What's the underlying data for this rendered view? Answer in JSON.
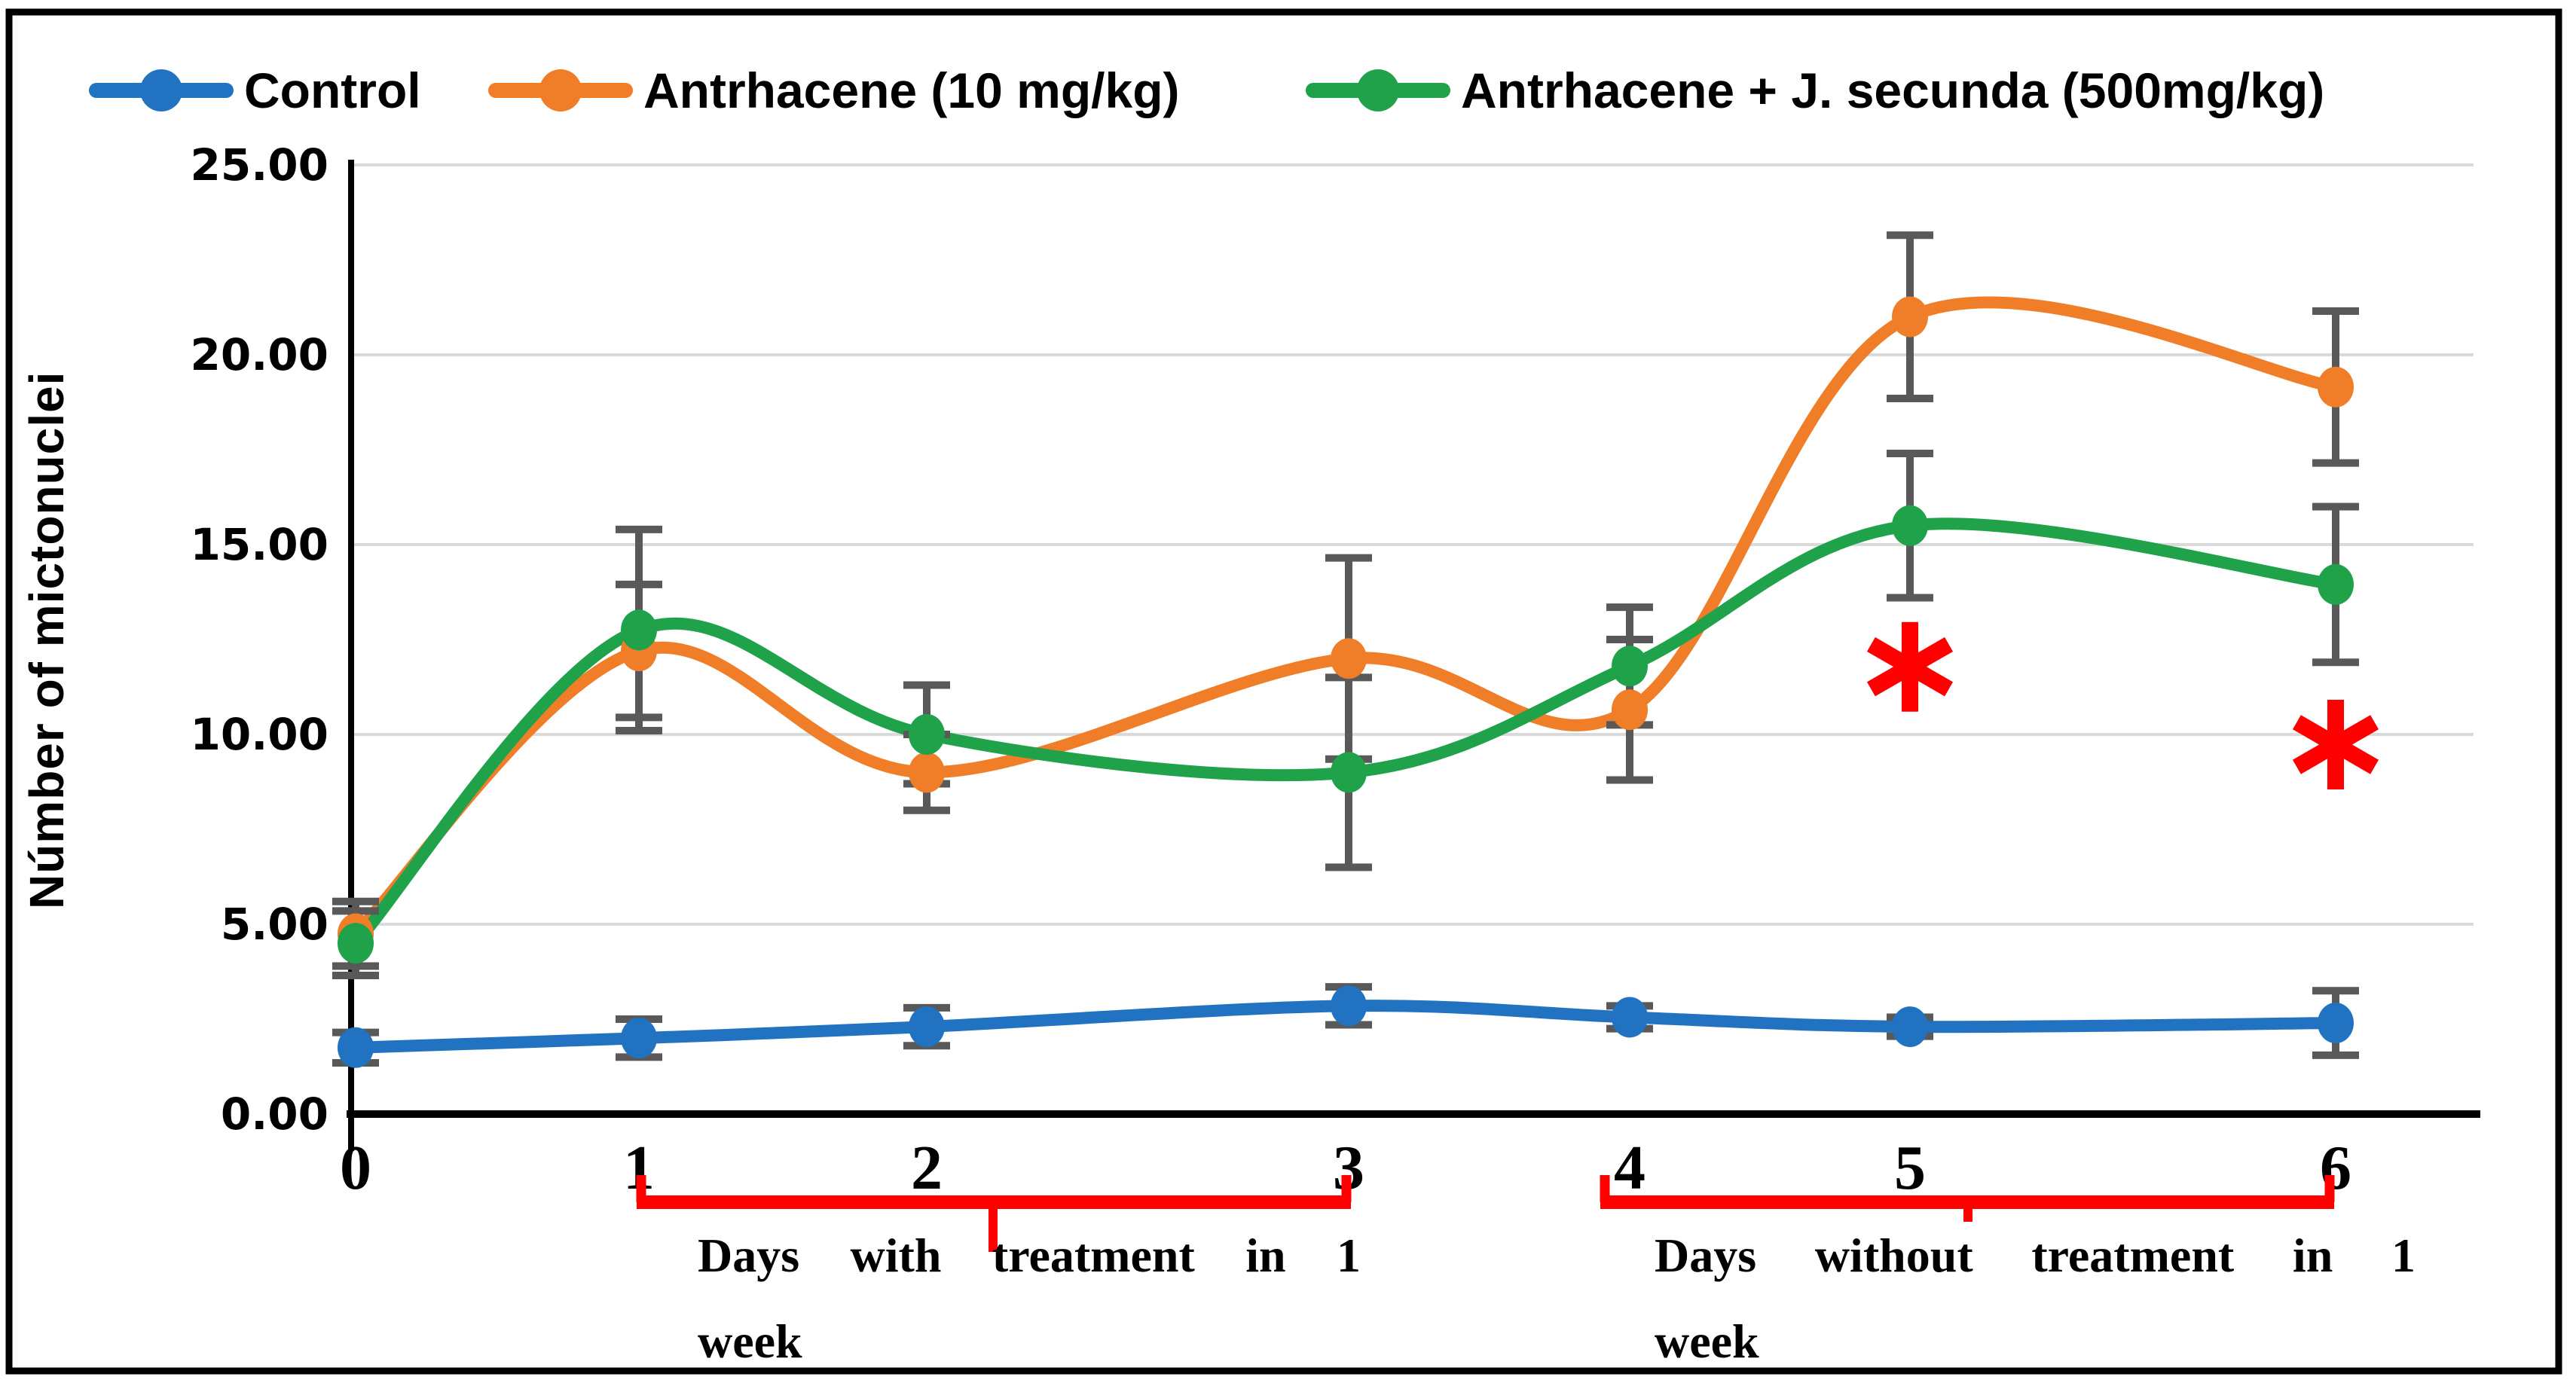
{
  "figure": {
    "background": "#FFFFFF",
    "border_color": "#000000",
    "y_axis_title": "Númber of mictonuclei"
  },
  "legend": {
    "position": "top",
    "items": [
      {
        "label": "Control",
        "color": "#2173C2",
        "marker": "circle-on-line"
      },
      {
        "label": "Antrhacene (10 mg/kg)",
        "color": "#F07E28",
        "marker": "circle-on-line"
      },
      {
        "label": "Antrhacene + J. secunda (500mg/kg)",
        "color": "#1FA24A",
        "marker": "circle-on-line"
      }
    ]
  },
  "chart_data": {
    "type": "line",
    "smooth": true,
    "title": "",
    "xlabel": "",
    "ylabel": "Númber of mictonuclei",
    "ylim": [
      0,
      25
    ],
    "grid": "horizontal-gridlines",
    "legend_position": "top",
    "x": [
      0,
      1,
      2,
      3,
      4,
      5,
      6
    ],
    "x_tick_labels": [
      "0",
      "1",
      "2",
      "3",
      "4",
      "5",
      "6"
    ],
    "y_tick_labels": [
      "0.00",
      "5.00",
      "10.00",
      "15.00",
      "20.00",
      "25.00"
    ],
    "series": [
      {
        "name": "Control",
        "color": "#2173C2",
        "values": [
          1.75,
          2.0,
          2.3,
          2.85,
          2.55,
          2.3,
          2.4
        ],
        "error": [
          0.4,
          0.5,
          0.5,
          0.5,
          0.3,
          0.25,
          0.85
        ]
      },
      {
        "name": "Antrhacene (10 mg/kg)",
        "color": "#F07E28",
        "values": [
          4.75,
          12.2,
          9.0,
          12.0,
          10.65,
          21.0,
          19.15
        ],
        "error": [
          0.85,
          1.75,
          1.0,
          2.65,
          1.85,
          2.15,
          2.0
        ]
      },
      {
        "name": "Antrhacene + J. secunda (500mg/kg)",
        "color": "#1FA24A",
        "values": [
          4.5,
          12.75,
          10.0,
          9.0,
          11.8,
          15.5,
          13.95
        ],
        "error": [
          0.85,
          2.65,
          1.3,
          2.5,
          1.55,
          1.9,
          2.05
        ]
      }
    ],
    "annotations": [
      {
        "type": "significance-asterisk",
        "text": "∗",
        "x": 5,
        "y": 11.9,
        "color": "#FF0000"
      },
      {
        "type": "significance-asterisk",
        "text": "∗",
        "x": 6,
        "y": 9.85,
        "color": "#FF0000"
      }
    ],
    "group_brackets": [
      {
        "from_x": 1,
        "to_x": 3,
        "color": "#FF0000",
        "label_line1": "Days with treatment in 1",
        "label_line2": "week"
      },
      {
        "from_x": 4,
        "to_x": 6,
        "color": "#FF0000",
        "label_line1": "Days without treatment in 1",
        "label_line2": "week"
      }
    ]
  },
  "colors": {
    "error_bar": "#595959",
    "gridline": "#DADADA",
    "axis": "#000000",
    "bracket": "#FF0000",
    "asterisk": "#FF0000"
  }
}
